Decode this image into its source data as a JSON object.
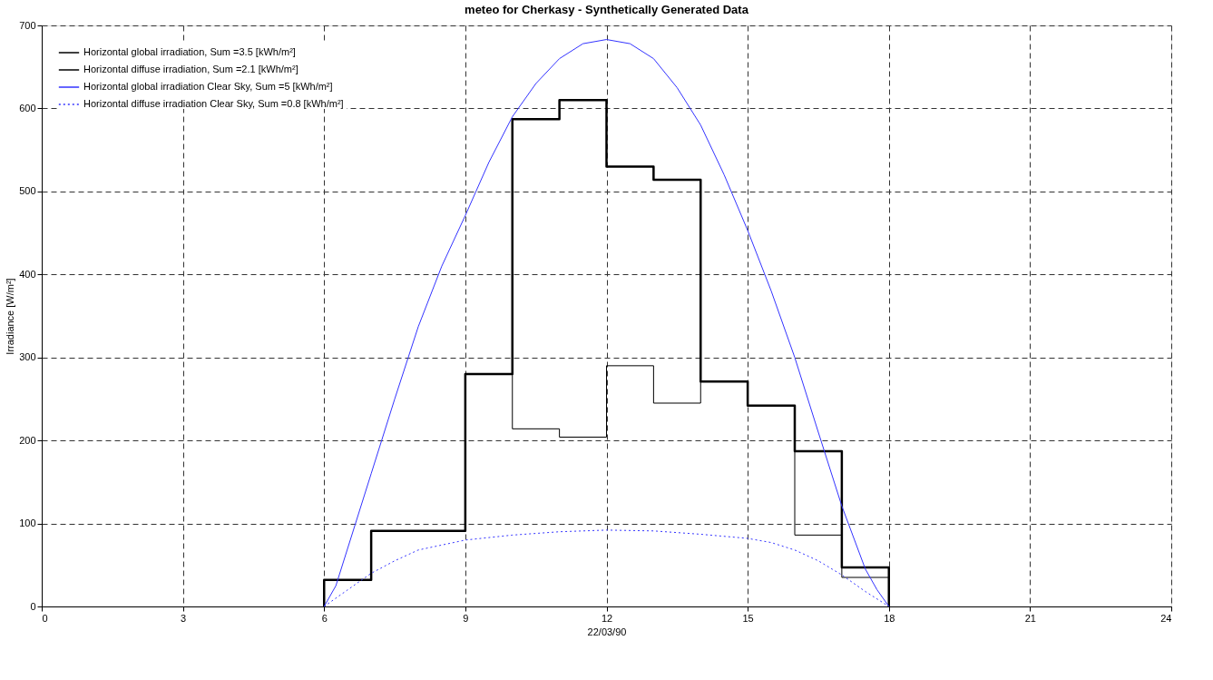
{
  "chart_data": {
    "type": "line",
    "title": "meteo for Cherkasy -  Synthetically Generated Data",
    "xlabel": "22/03/90",
    "ylabel": "Irradiance [W/m²]",
    "xlim": [
      0,
      24
    ],
    "xticks": [
      0,
      3,
      6,
      9,
      12,
      15,
      18,
      21,
      24
    ],
    "ylim": [
      0,
      700
    ],
    "yticks": [
      0,
      100,
      200,
      300,
      400,
      500,
      600,
      700
    ],
    "grid": true,
    "legend": "top left",
    "series": [
      {
        "name": "Horizontal global irradiation,  Sum =3.5 [kWh/m²]",
        "type": "step",
        "color": "#000000",
        "line_style": "solid",
        "x": [
          6,
          6,
          7,
          8,
          9,
          10,
          11,
          12,
          13,
          14,
          15,
          16,
          17,
          18
        ],
        "values": [
          0,
          32,
          91,
          91,
          280,
          587,
          610,
          530,
          514,
          271,
          242,
          187,
          47,
          0
        ]
      },
      {
        "name": "Horizontal diffuse irradiation,  Sum =2.1 [kWh/m²]",
        "type": "step",
        "color": "#000000",
        "line_style": "solid",
        "x": [
          6,
          6,
          7,
          8,
          9,
          10,
          11,
          12,
          13,
          14,
          15,
          16,
          17,
          18
        ],
        "values": [
          0,
          32,
          91,
          91,
          280,
          214,
          204,
          290,
          245,
          271,
          242,
          86,
          35,
          0
        ]
      },
      {
        "name": "Horizontal global irradiation Clear Sky,  Sum =5 [kWh/m²]",
        "color": "#3333ff",
        "line_style": "solid",
        "x": [
          6,
          6.25,
          6.5,
          7,
          7.5,
          8,
          8.5,
          9,
          9.5,
          10,
          10.5,
          11,
          11.5,
          12,
          12.5,
          13,
          13.5,
          14,
          14.5,
          15,
          15.5,
          16,
          16.5,
          17,
          17.5,
          17.75,
          18
        ],
        "values": [
          0,
          25,
          70,
          160,
          250,
          337,
          410,
          471,
          535,
          590,
          630,
          660,
          678,
          683,
          678,
          660,
          625,
          580,
          520,
          453,
          380,
          300,
          210,
          121,
          45,
          20,
          0
        ]
      },
      {
        "name": "Horizontal diffuse irradiation Clear Sky,  Sum =0.8 [kWh/m²]",
        "color": "#3333ff",
        "line_style": "dotted",
        "x": [
          6,
          6.5,
          7,
          7.5,
          8,
          9,
          10,
          11,
          12,
          13,
          14,
          15,
          15.5,
          16,
          16.5,
          17,
          17.5,
          18
        ],
        "values": [
          0,
          20,
          40,
          55,
          68,
          80,
          86,
          90,
          92,
          91,
          87,
          82,
          77,
          68,
          55,
          38,
          18,
          0
        ]
      }
    ]
  }
}
